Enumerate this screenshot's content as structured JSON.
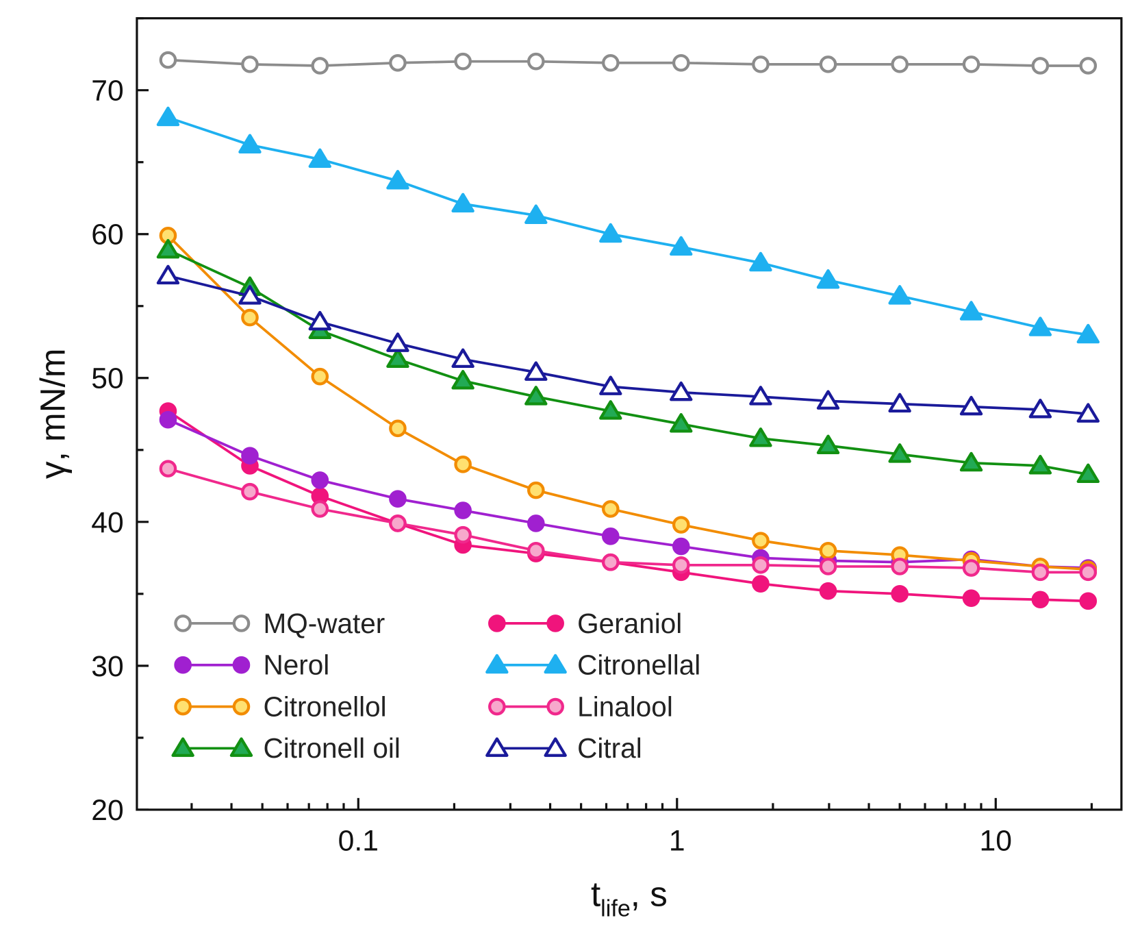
{
  "chart_data": {
    "type": "line",
    "title": "",
    "xlabel": "t",
    "xlabel_sub": "life",
    "xlabel_suffix": ", s",
    "ylabel": "γ, mN/m",
    "xscale": "log",
    "xlim": [
      0.0202,
      24.8
    ],
    "ylim": [
      20,
      75
    ],
    "x_ticks": [
      0.1,
      1,
      10
    ],
    "x_tick_labels": [
      "0.1",
      "1",
      "10"
    ],
    "y_ticks": [
      20,
      30,
      40,
      50,
      60,
      70
    ],
    "y_tick_labels": [
      "20",
      "30",
      "40",
      "50",
      "60",
      "70"
    ],
    "grid": false,
    "legend_placement": "bottom-left, two columns",
    "x": [
      0.0253,
      0.0457,
      0.0758,
      0.133,
      0.213,
      0.361,
      0.619,
      1.03,
      1.83,
      2.98,
      5.0,
      8.38,
      13.8,
      19.5
    ],
    "series": [
      {
        "name": "MQ-water",
        "color": "#8c8c8c",
        "fill": "#ffffff",
        "marker": "circle",
        "values": [
          72.1,
          71.8,
          71.7,
          71.9,
          72.0,
          72.0,
          71.9,
          71.9,
          71.8,
          71.8,
          71.8,
          71.8,
          71.7,
          71.7
        ]
      },
      {
        "name": "Geraniol",
        "color": "#f0147c",
        "fill": "#f0147c",
        "marker": "circle",
        "values": [
          47.7,
          43.9,
          41.8,
          39.9,
          38.4,
          37.8,
          37.2,
          36.5,
          35.7,
          35.2,
          35.0,
          34.7,
          34.6,
          34.5
        ]
      },
      {
        "name": "Nerol",
        "color": "#a020d0",
        "fill": "#a020d0",
        "marker": "circle",
        "values": [
          47.1,
          44.6,
          42.9,
          41.6,
          40.8,
          39.9,
          39.0,
          38.3,
          37.5,
          37.3,
          37.2,
          37.4,
          36.9,
          36.8
        ]
      },
      {
        "name": "Citronellal",
        "color": "#1eb0f0",
        "fill": "#1eb0f0",
        "marker": "triangle",
        "values": [
          68.1,
          66.2,
          65.2,
          63.7,
          62.1,
          61.3,
          60.0,
          59.1,
          58.0,
          56.8,
          55.7,
          54.6,
          53.5,
          53.0
        ]
      },
      {
        "name": "Citronellol",
        "color": "#f28c00",
        "fill": "#ffe070",
        "marker": "circle",
        "values": [
          59.9,
          54.2,
          50.1,
          46.5,
          44.0,
          42.2,
          40.9,
          39.8,
          38.7,
          38.0,
          37.7,
          37.3,
          36.9,
          36.7
        ]
      },
      {
        "name": "Linalool",
        "color": "#f0288c",
        "fill": "#f7a8cc",
        "marker": "circle",
        "values": [
          43.7,
          42.1,
          40.9,
          39.9,
          39.1,
          38.0,
          37.2,
          37.0,
          37.0,
          36.9,
          36.9,
          36.8,
          36.5,
          36.5
        ]
      },
      {
        "name": "Citronell oil",
        "color": "#129012",
        "fill": "#22aa55",
        "marker": "triangle",
        "values": [
          58.9,
          56.3,
          53.3,
          51.3,
          49.8,
          48.7,
          47.7,
          46.8,
          45.8,
          45.3,
          44.7,
          44.1,
          43.9,
          43.3
        ]
      },
      {
        "name": "Citral",
        "color": "#1a1a9a",
        "fill": "#ffffff",
        "marker": "triangle",
        "values": [
          57.1,
          55.7,
          53.9,
          52.4,
          51.3,
          50.4,
          49.4,
          49.0,
          48.7,
          48.4,
          48.2,
          48.0,
          47.8,
          47.5
        ]
      }
    ]
  }
}
